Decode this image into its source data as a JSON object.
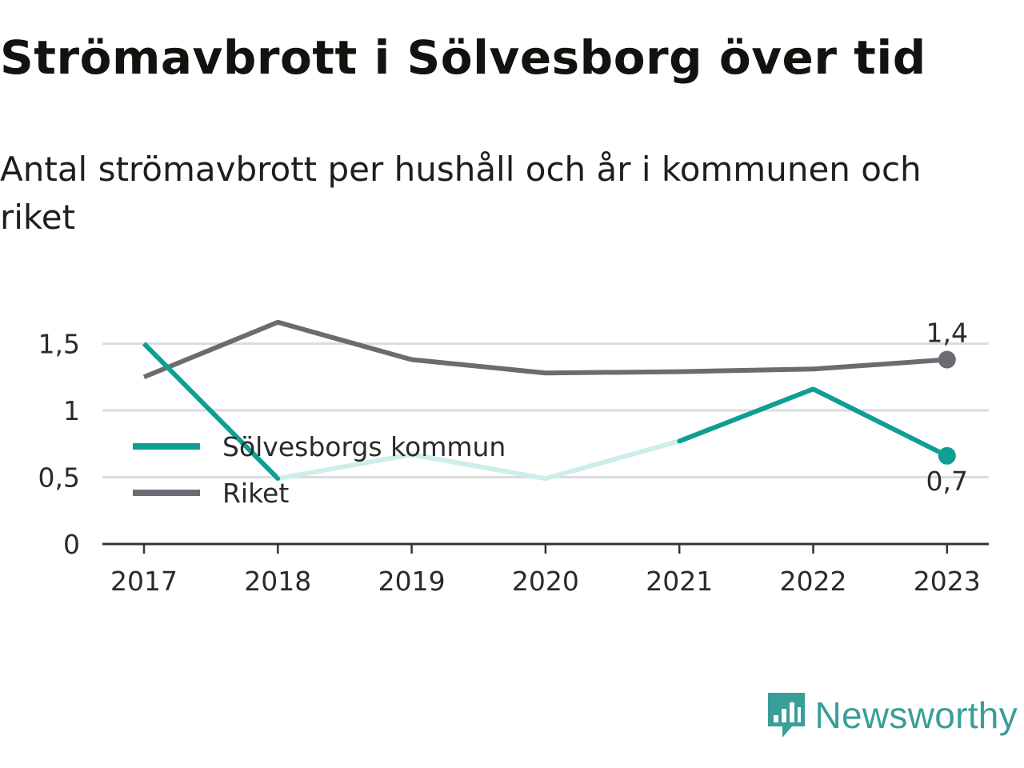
{
  "title": "Strömavbrott i Sölvesborg över tid",
  "subtitle": "Antal strömavbrott per hushåll och år i kommunen och riket",
  "brand": {
    "name": "Newsworthy",
    "icon": "newsworthy-logo-icon"
  },
  "colors": {
    "kommun": "#0e9e94",
    "kommun_faded": "#cdeeeb",
    "riket": "#6c6b72",
    "grid": "#dcdcdc",
    "axis": "#333333",
    "text": "#2a2a2a",
    "brand": "#3a9e98"
  },
  "chart_data": {
    "type": "line",
    "x": [
      "2017",
      "2018",
      "2019",
      "2020",
      "2021",
      "2022",
      "2023"
    ],
    "ylim": [
      0,
      1.7
    ],
    "yticks": [
      0,
      0.5,
      1,
      1.5
    ],
    "ytick_labels": [
      "0",
      "0,5",
      "1",
      "1,5"
    ],
    "grid": true,
    "legend_position": "middle-left",
    "series": [
      {
        "name": "Sölvesborgs kommun",
        "key": "kommun",
        "values": [
          1.5,
          0.49,
          0.67,
          0.49,
          0.77,
          1.16,
          0.66
        ],
        "end_label": "0,7",
        "faded_segments": [
          1,
          2,
          3
        ]
      },
      {
        "name": "Riket",
        "key": "riket",
        "values": [
          1.25,
          1.66,
          1.38,
          1.28,
          1.29,
          1.31,
          1.38
        ],
        "end_label": "1,4"
      }
    ]
  }
}
